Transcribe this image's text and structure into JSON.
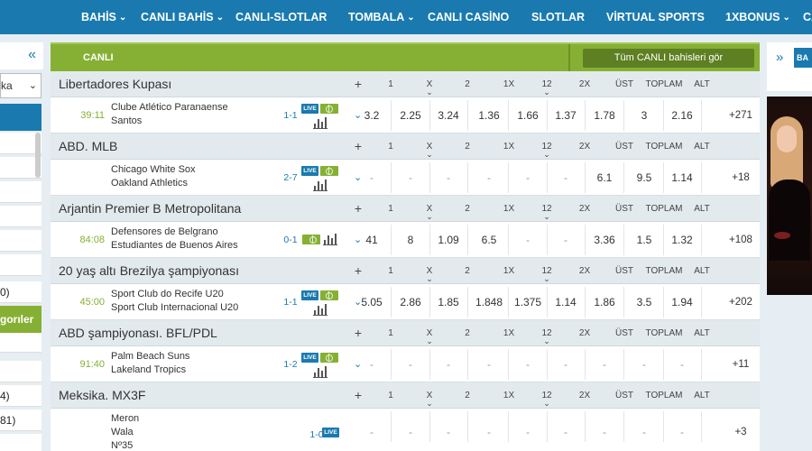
{
  "nav": {
    "items": [
      {
        "label": "BAHİS",
        "chevron": true
      },
      {
        "label": "CANLI BAHİS",
        "chevron": true
      },
      {
        "label": "CANLI-SLOTLAR",
        "chevron": false
      },
      {
        "label": "TOMBALA",
        "chevron": true
      },
      {
        "label": "CANLI CASİNO",
        "chevron": false
      },
      {
        "label": "SLOTLAR",
        "chevron": false
      },
      {
        "label": "VİRTUAL SPORTS",
        "chevron": false
      },
      {
        "label": "1XBONUS",
        "chevron": true
      },
      {
        "label": "CA",
        "chevron": false
      }
    ]
  },
  "sidebar": {
    "collapse_icon": "double-chevron-left-icon",
    "select_text": "ka",
    "green_label": "gorıler",
    "items": [
      "",
      "",
      "",
      "",
      "",
      "",
      "0)",
      "",
      "",
      "4)",
      "81)",
      ""
    ]
  },
  "main": {
    "section_title": "CANLI",
    "see_all": "Tüm CANLI bahisleri gör",
    "columns": [
      "+",
      "1",
      "X",
      "2",
      "1X",
      "12",
      "2X",
      "ÜST",
      "TOPLAM",
      "ALT"
    ],
    "leagues": [
      {
        "name": "Libertadores Kupası",
        "matches": [
          {
            "time": "39:11",
            "teams": [
              "Clube Atlético Paranaense",
              "Santos"
            ],
            "score": "1-1",
            "live": "LIVE",
            "badges_layout": "stacked",
            "odds": [
              "3.2",
              "2.25",
              "3.24",
              "1.36",
              "1.66",
              "1.37",
              "1.78",
              "3",
              "2.16"
            ],
            "more": "+271"
          }
        ]
      },
      {
        "name": "ABD. MLB",
        "matches": [
          {
            "time": "",
            "teams": [
              "Chicago White Sox",
              "Oakland Athletics"
            ],
            "score": "2-7",
            "live": "LIVE",
            "badges_layout": "stacked",
            "odds": [
              "-",
              "-",
              "-",
              "-",
              "-",
              "-",
              "6.1",
              "9.5",
              "1.14"
            ],
            "more": "+18"
          }
        ]
      },
      {
        "name": "Arjantin Premier B Metropolitana",
        "matches": [
          {
            "time": "84:08",
            "teams": [
              "Defensores de Belgrano",
              "Estudiantes de Buenos Aires"
            ],
            "score": "0-1",
            "live": "",
            "badges_layout": "inline",
            "odds": [
              "41",
              "8",
              "1.09",
              "6.5",
              "-",
              "-",
              "3.36",
              "1.5",
              "1.32"
            ],
            "more": "+108"
          }
        ]
      },
      {
        "name": "20 yaş altı Brezilya şampiyonası",
        "matches": [
          {
            "time": "45:00",
            "teams": [
              "Sport Club do Recife U20",
              "Sport Club Internacional U20"
            ],
            "score": "1-1",
            "live": "LIVE",
            "badges_layout": "stacked",
            "odds": [
              "5.05",
              "2.86",
              "1.85",
              "1.848",
              "1.375",
              "1.14",
              "1.86",
              "3.5",
              "1.94"
            ],
            "more": "+202"
          }
        ]
      },
      {
        "name": "ABD şampiyonası. BFL/PDL",
        "matches": [
          {
            "time": "91:40",
            "teams": [
              "Palm Beach Suns",
              "Lakeland Tropics"
            ],
            "score": "1-2",
            "live": "LIVE",
            "badges_layout": "stacked",
            "odds": [
              "-",
              "-",
              "-",
              "-",
              "-",
              "-",
              "-",
              "-",
              "-"
            ],
            "more": "+11"
          }
        ]
      },
      {
        "name": "Meksika. MX3F",
        "matches": [
          {
            "time": "",
            "teams": [
              "Meron",
              "Wala",
              "Nº35"
            ],
            "score": "1-0",
            "live": "LIVE",
            "badges_layout": "single",
            "odds": [
              "-",
              "-",
              "-",
              "-",
              "-",
              "-",
              "-",
              "-",
              "-"
            ],
            "more": "+3"
          }
        ]
      }
    ]
  },
  "right": {
    "expand_icon": "double-chevron-right-icon",
    "tab_label": "BA"
  },
  "colors": {
    "nav": "#1a7aaf",
    "green": "#86b034",
    "league_bg": "#e2eaee",
    "page_bg": "#e6eef3"
  }
}
